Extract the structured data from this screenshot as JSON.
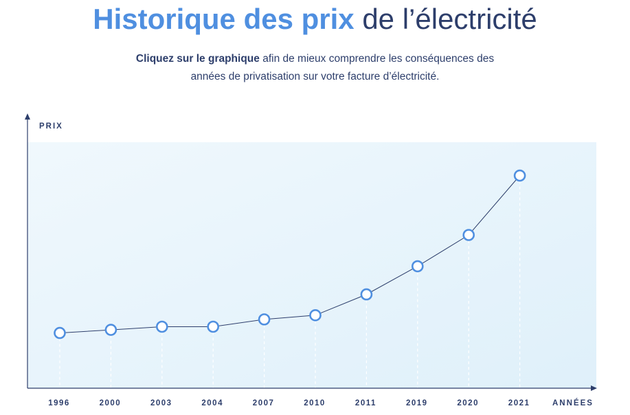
{
  "header": {
    "title_strong": "Historique des prix",
    "title_rest": " de l’électricité",
    "subtitle_bold": "Cliquez sur le graphique",
    "subtitle_line1_rest": " afin de mieux comprendre les conséquences des",
    "subtitle_line2": "années de privatisation sur votre facture d’électricité."
  },
  "colors": {
    "accent": "#4f8fe0",
    "navy": "#2d3e6b",
    "plot_bg": "#e3f3fb",
    "line": "#2d3e6b"
  },
  "chart_data": {
    "type": "line",
    "ylabel": "PRIX",
    "xlabel": "ANNÉES",
    "categories": [
      "1996",
      "2000",
      "2003",
      "2004",
      "2007",
      "2010",
      "2011",
      "2019",
      "2020",
      "2021"
    ],
    "values": [
      5.3,
      5.6,
      5.9,
      5.9,
      6.6,
      7.0,
      9.0,
      11.7,
      14.7,
      20.4
    ],
    "ylim": [
      0,
      23.6
    ],
    "y_ticks_shown": false,
    "grid": "vertical dashed guides below each point"
  }
}
